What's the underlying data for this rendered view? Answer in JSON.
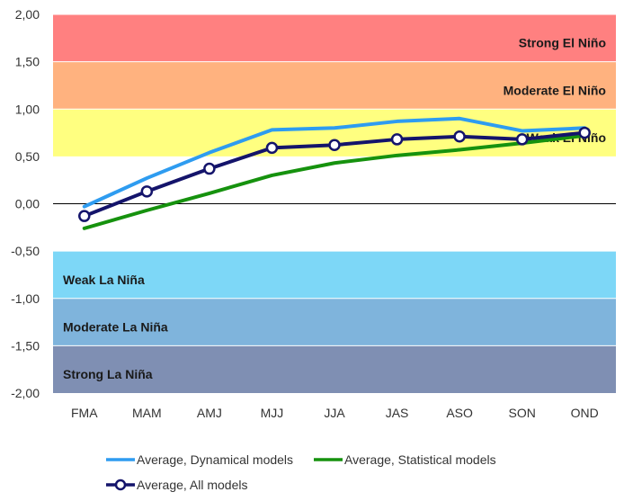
{
  "chart_data": {
    "type": "line",
    "categories": [
      "FMA",
      "MAM",
      "AMJ",
      "MJJ",
      "JJA",
      "JAS",
      "ASO",
      "SON",
      "OND"
    ],
    "ylim": [
      -2.0,
      2.0
    ],
    "yticks": [
      "2,00",
      "1,50",
      "1,00",
      "0,50",
      "0,00",
      "-0,50",
      "-1,00",
      "-1,50",
      "-2,00"
    ],
    "ytick_values": [
      2.0,
      1.5,
      1.0,
      0.5,
      0.0,
      -0.5,
      -1.0,
      -1.5,
      -2.0
    ],
    "bands": [
      {
        "label": "Strong El Niño",
        "from": 1.5,
        "to": 2.0,
        "color": "#ff8080",
        "label_side": "right"
      },
      {
        "label": "Moderate El Niño",
        "from": 1.0,
        "to": 1.5,
        "color": "#ffb27f",
        "label_side": "right"
      },
      {
        "label": "Weak El Niño",
        "from": 0.5,
        "to": 1.0,
        "color": "#ffff80",
        "label_side": "right"
      },
      {
        "label": "Weak La Niña",
        "from": -1.0,
        "to": -0.5,
        "color": "#7dd7f7",
        "label_side": "left"
      },
      {
        "label": "Moderate La Niña",
        "from": -1.5,
        "to": -1.0,
        "color": "#7fb4dc",
        "label_side": "left"
      },
      {
        "label": "Strong La Niña",
        "from": -2.0,
        "to": -1.5,
        "color": "#7f8fb3",
        "label_side": "left"
      }
    ],
    "series": [
      {
        "name": "Average, Dynamical models",
        "color": "#2e9cf0",
        "markers": false,
        "values": [
          -0.03,
          0.27,
          0.54,
          0.78,
          0.8,
          0.87,
          0.9,
          0.77,
          0.8
        ]
      },
      {
        "name": "Average, Statistical models",
        "color": "#16920e",
        "markers": false,
        "values": [
          -0.26,
          -0.07,
          0.11,
          0.3,
          0.43,
          0.51,
          0.57,
          0.64,
          0.72
        ]
      },
      {
        "name": "Average, All models",
        "color": "#14146b",
        "markers": true,
        "values": [
          -0.13,
          0.13,
          0.37,
          0.59,
          0.62,
          0.68,
          0.71,
          0.68,
          0.75
        ]
      }
    ],
    "legend_position": "bottom",
    "grid": false
  }
}
